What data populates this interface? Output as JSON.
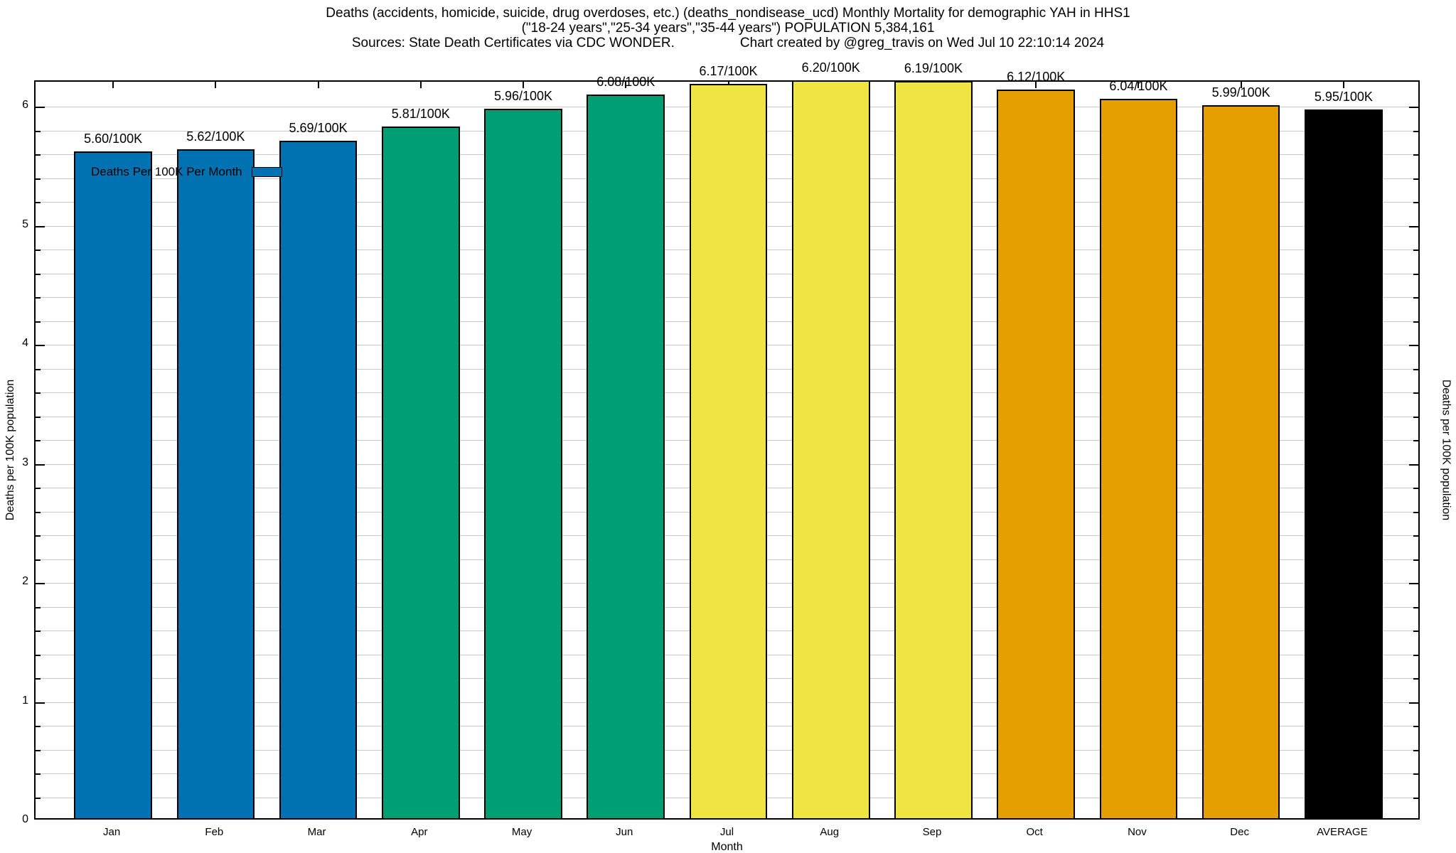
{
  "chart_data": {
    "type": "bar",
    "title_line1": "Deaths (accidents, homicide, suicide, drug overdoses, etc.) (deaths_nondisease_ucd) Monthly Mortality for demographic YAH in HHS1",
    "title_line2": "(\"18-24 years\",\"25-34 years\",\"35-44 years\") POPULATION 5,384,161",
    "title_line3_left": "Sources: State Death Certificates via CDC WONDER.",
    "title_line3_right": "Chart created by @greg_travis on Wed Jul 10 22:10:14 2024",
    "legend_label": "Deaths Per 100K Per Month",
    "legend_position": "top-left",
    "legend_swatch_color": "#0072B2",
    "xlabel": "Month",
    "ylabel_left": "Deaths per 100K population",
    "ylabel_right": "Deaths per 100K population",
    "categories": [
      "Jan",
      "Feb",
      "Mar",
      "Apr",
      "May",
      "Jun",
      "Jul",
      "Aug",
      "Sep",
      "Oct",
      "Nov",
      "Dec",
      "AVERAGE"
    ],
    "values": [
      5.6,
      5.62,
      5.69,
      5.81,
      5.96,
      6.08,
      6.17,
      6.2,
      6.19,
      6.12,
      6.04,
      5.99,
      5.95
    ],
    "value_labels": [
      "5.60/100K",
      "5.62/100K",
      "5.69/100K",
      "5.81/100K",
      "5.96/100K",
      "6.08/100K",
      "6.17/100K",
      "6.20/100K",
      "6.19/100K",
      "6.12/100K",
      "6.04/100K",
      "5.99/100K",
      "5.95/100K"
    ],
    "bar_colors": [
      "#0072B2",
      "#0072B2",
      "#0072B2",
      "#009E73",
      "#009E73",
      "#009E73",
      "#F0E442",
      "#F0E442",
      "#F0E442",
      "#E69F00",
      "#E69F00",
      "#E69F00",
      "#000000"
    ],
    "ylim": [
      0,
      6.209
    ],
    "yticks": [
      0,
      1,
      2,
      3,
      4,
      5,
      6
    ],
    "minor_step": 0.2,
    "grid": true,
    "grid_color": "#c9c9c9",
    "axis_color": "#000000"
  }
}
